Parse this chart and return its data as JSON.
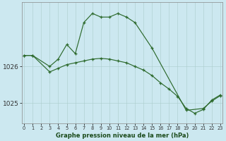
{
  "series1": {
    "x": [
      0,
      1,
      3,
      4,
      5,
      6,
      7,
      8,
      9,
      10,
      11,
      12,
      13,
      15,
      19,
      21,
      22,
      23
    ],
    "y": [
      1026.3,
      1026.3,
      1026.0,
      1026.2,
      1026.6,
      1026.35,
      1027.2,
      1027.45,
      1027.35,
      1027.35,
      1027.45,
      1027.35,
      1027.2,
      1026.5,
      1024.8,
      1024.85,
      1025.05,
      1025.2
    ]
  },
  "series2": {
    "x": [
      0,
      1,
      3,
      4,
      5,
      6,
      7,
      8,
      9,
      10,
      11,
      12,
      13,
      14,
      15,
      16,
      17,
      18,
      19,
      20,
      21,
      22,
      23
    ],
    "y": [
      1026.3,
      1026.3,
      1025.85,
      1025.95,
      1026.05,
      1026.1,
      1026.15,
      1026.2,
      1026.22,
      1026.2,
      1026.15,
      1026.1,
      1026.0,
      1025.9,
      1025.75,
      1025.55,
      1025.38,
      1025.18,
      1024.85,
      1024.72,
      1024.82,
      1025.08,
      1025.22
    ]
  },
  "line_color": "#2d6a2d",
  "bg_color": "#cce8f0",
  "xlabel": "Graphe pression niveau de la mer (hPa)",
  "yticks": [
    1025,
    1026
  ],
  "xticks": [
    0,
    1,
    2,
    3,
    4,
    5,
    6,
    7,
    8,
    9,
    10,
    11,
    12,
    13,
    14,
    15,
    16,
    17,
    18,
    19,
    20,
    21,
    22,
    23
  ],
  "ylim": [
    1024.45,
    1027.75
  ],
  "xlim": [
    -0.3,
    23.3
  ]
}
